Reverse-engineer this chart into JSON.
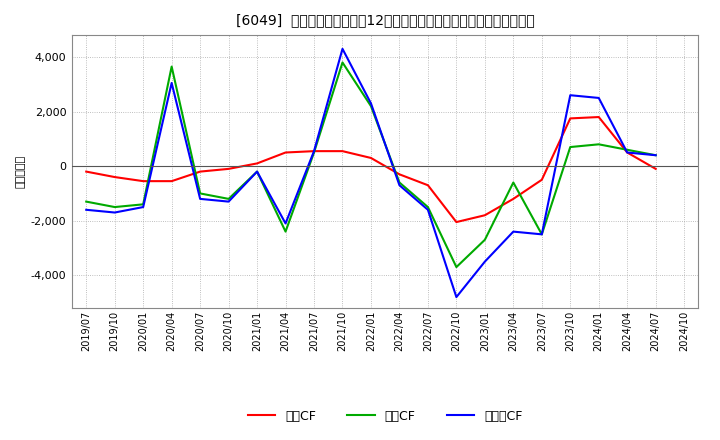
{
  "title": "[6049]  キャッシュフローの12か月移動合計の対前年同期増減額の推移",
  "ylabel": "（百万円）",
  "background_color": "#ffffff",
  "grid_color": "#aaaaaa",
  "xlabels": [
    "2019/07",
    "2019/10",
    "2020/01",
    "2020/04",
    "2020/07",
    "2020/10",
    "2021/01",
    "2021/04",
    "2021/07",
    "2021/10",
    "2022/01",
    "2022/04",
    "2022/07",
    "2022/10",
    "2023/01",
    "2023/04",
    "2023/07",
    "2023/10",
    "2024/01",
    "2024/04",
    "2024/07",
    "2024/10"
  ],
  "operating_cf": [
    -200,
    -400,
    -550,
    -550,
    -200,
    -100,
    100,
    500,
    550,
    550,
    300,
    -300,
    -700,
    -2050,
    -1800,
    -1200,
    -500,
    1750,
    1800,
    500,
    -100,
    null
  ],
  "investing_cf": [
    -1300,
    -1500,
    -1400,
    3650,
    -1000,
    -1200,
    -200,
    -2400,
    500,
    3800,
    2200,
    -600,
    -1500,
    -3700,
    -2700,
    -600,
    -2500,
    700,
    800,
    600,
    400,
    null
  ],
  "free_cf": [
    -1600,
    -1700,
    -1500,
    3050,
    -1200,
    -1300,
    -200,
    -2100,
    550,
    4300,
    2300,
    -700,
    -1600,
    -4800,
    -3500,
    -2400,
    -2500,
    2600,
    2500,
    500,
    400,
    null
  ],
  "operating_color": "#ff0000",
  "investing_color": "#00aa00",
  "free_color": "#0000ff",
  "ylim": [
    -5200,
    4800
  ],
  "yticks": [
    -4000,
    -2000,
    0,
    2000,
    4000
  ],
  "legend_labels": [
    "営業CF",
    "投資CF",
    "フリーCF"
  ]
}
